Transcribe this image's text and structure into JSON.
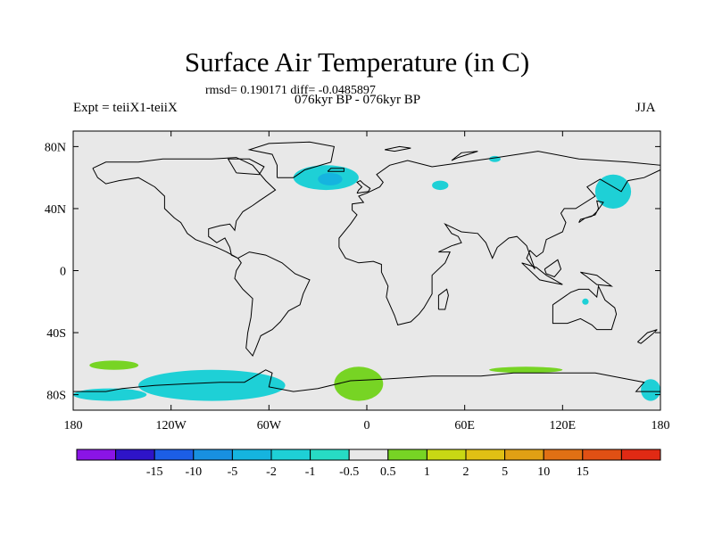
{
  "title": "Surface Air Temperature (in C)",
  "stats": "rmsd= 0.190171 diff= -0.0485897",
  "period": "076kyr BP - 076kyr BP",
  "experiment": "Expt = teiiX1-teiiX",
  "season": "JJA",
  "colors": {
    "background": "#e8e8e8",
    "cyan": "#1ed0d6",
    "blue_cyan": "#15b4df",
    "green": "#77d424",
    "coast": "#000000"
  },
  "chart_data": {
    "type": "heatmap",
    "projection": "cylindrical-equidistant",
    "xlim": [
      -180,
      180
    ],
    "ylim": [
      -90,
      90
    ],
    "x_ticks": [
      {
        "value": -180,
        "label": "180"
      },
      {
        "value": -120,
        "label": "120W"
      },
      {
        "value": -60,
        "label": "60W"
      },
      {
        "value": 0,
        "label": "0"
      },
      {
        "value": 60,
        "label": "60E"
      },
      {
        "value": 120,
        "label": "120E"
      },
      {
        "value": 180,
        "label": "180"
      }
    ],
    "y_ticks": [
      {
        "value": 80,
        "label": "80N"
      },
      {
        "value": 40,
        "label": "40N"
      },
      {
        "value": 0,
        "label": "0"
      },
      {
        "value": -40,
        "label": "40S"
      },
      {
        "value": -80,
        "label": "80S"
      }
    ],
    "colorbar": {
      "labels": [
        "-15",
        "-10",
        "-5",
        "-2",
        "-1",
        "-0.5",
        "0.5",
        "1",
        "2",
        "5",
        "10",
        "15"
      ],
      "colors": [
        "#8a14e6",
        "#2e14c8",
        "#1c5ee6",
        "#1890e0",
        "#15b4df",
        "#1ed0d6",
        "#27dbc4",
        "#e8e8e8",
        "#77d424",
        "#c8d814",
        "#e0c014",
        "#e0a014",
        "#e07014",
        "#e05014",
        "#e02a14"
      ]
    },
    "anomaly_regions": [
      {
        "id": "north-atlantic",
        "color": "cyan",
        "lon_range": [
          -45,
          -5
        ],
        "lat_range": [
          52,
          68
        ]
      },
      {
        "id": "north-atlantic-core",
        "color": "blue_cyan",
        "lon_range": [
          -30,
          -15
        ],
        "lat_range": [
          55,
          63
        ]
      },
      {
        "id": "ross-amundsen-sea",
        "color": "cyan",
        "lon_range": [
          -140,
          -50
        ],
        "lat_range": [
          -84,
          -64
        ]
      },
      {
        "id": "south-atlantic",
        "color": "green",
        "lon_range": [
          -20,
          10
        ],
        "lat_range": [
          -84,
          -62
        ]
      },
      {
        "id": "south-pacific-west",
        "color": "green",
        "lon_range": [
          -170,
          -140
        ],
        "lat_range": [
          -64,
          -58
        ]
      },
      {
        "id": "ross-sea-west",
        "color": "cyan",
        "lon_range": [
          -180,
          -135
        ],
        "lat_range": [
          -84,
          -76
        ]
      },
      {
        "id": "kamchatka",
        "color": "cyan",
        "lon_range": [
          140,
          162
        ],
        "lat_range": [
          40,
          62
        ]
      },
      {
        "id": "barents-sea",
        "color": "cyan",
        "lon_range": [
          40,
          50
        ],
        "lat_range": [
          52,
          58
        ]
      },
      {
        "id": "kara-sea",
        "color": "cyan",
        "lon_range": [
          75,
          82
        ],
        "lat_range": [
          70,
          74
        ]
      },
      {
        "id": "australia-north",
        "color": "cyan",
        "lon_range": [
          132,
          136
        ],
        "lat_range": [
          -22,
          -18
        ]
      },
      {
        "id": "east-antarctica",
        "color": "cyan",
        "lon_range": [
          168,
          180
        ],
        "lat_range": [
          -84,
          -70
        ]
      },
      {
        "id": "southern-ocean-green",
        "color": "green",
        "lon_range": [
          75,
          120
        ],
        "lat_range": [
          -66,
          -62
        ]
      }
    ]
  }
}
